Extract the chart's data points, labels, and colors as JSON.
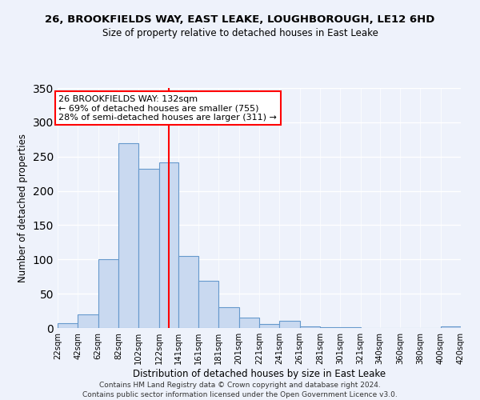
{
  "title": "26, BROOKFIELDS WAY, EAST LEAKE, LOUGHBOROUGH, LE12 6HD",
  "subtitle": "Size of property relative to detached houses in East Leake",
  "xlabel": "Distribution of detached houses by size in East Leake",
  "ylabel": "Number of detached properties",
  "bin_edges": [
    22,
    42,
    62,
    82,
    102,
    122,
    141,
    161,
    181,
    201,
    221,
    241,
    261,
    281,
    301,
    321,
    340,
    360,
    380,
    400,
    420
  ],
  "bar_heights": [
    7,
    20,
    100,
    270,
    232,
    241,
    105,
    69,
    30,
    15,
    6,
    11,
    2,
    1,
    1,
    0,
    0,
    0,
    0,
    2
  ],
  "tick_labels": [
    "22sqm",
    "42sqm",
    "62sqm",
    "82sqm",
    "102sqm",
    "122sqm",
    "141sqm",
    "161sqm",
    "181sqm",
    "201sqm",
    "221sqm",
    "241sqm",
    "261sqm",
    "281sqm",
    "301sqm",
    "321sqm",
    "340sqm",
    "360sqm",
    "380sqm",
    "400sqm",
    "420sqm"
  ],
  "bar_color": "#c9d9f0",
  "bar_edge_color": "#6699cc",
  "vline_x": 132,
  "vline_color": "red",
  "ylim": [
    0,
    350
  ],
  "yticks": [
    0,
    50,
    100,
    150,
    200,
    250,
    300,
    350
  ],
  "annotation_title": "26 BROOKFIELDS WAY: 132sqm",
  "annotation_line1": "← 69% of detached houses are smaller (755)",
  "annotation_line2": "28% of semi-detached houses are larger (311) →",
  "annotation_box_color": "#ffffff",
  "annotation_box_edge": "red",
  "footer1": "Contains HM Land Registry data © Crown copyright and database right 2024.",
  "footer2": "Contains public sector information licensed under the Open Government Licence v3.0.",
  "background_color": "#eef2fb"
}
